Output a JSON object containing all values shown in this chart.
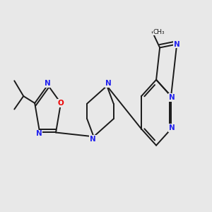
{
  "bg_color": "#e8e8e8",
  "bond_color": "#1a1a1a",
  "N_color": "#2222ee",
  "O_color": "#ee0000",
  "line_width": 1.4,
  "font_size": 7.5,
  "fig_width": 3.0,
  "fig_height": 3.0,
  "dpi": 100,
  "xlim": [
    0.05,
    0.97
  ],
  "ylim": [
    0.3,
    0.78
  ]
}
